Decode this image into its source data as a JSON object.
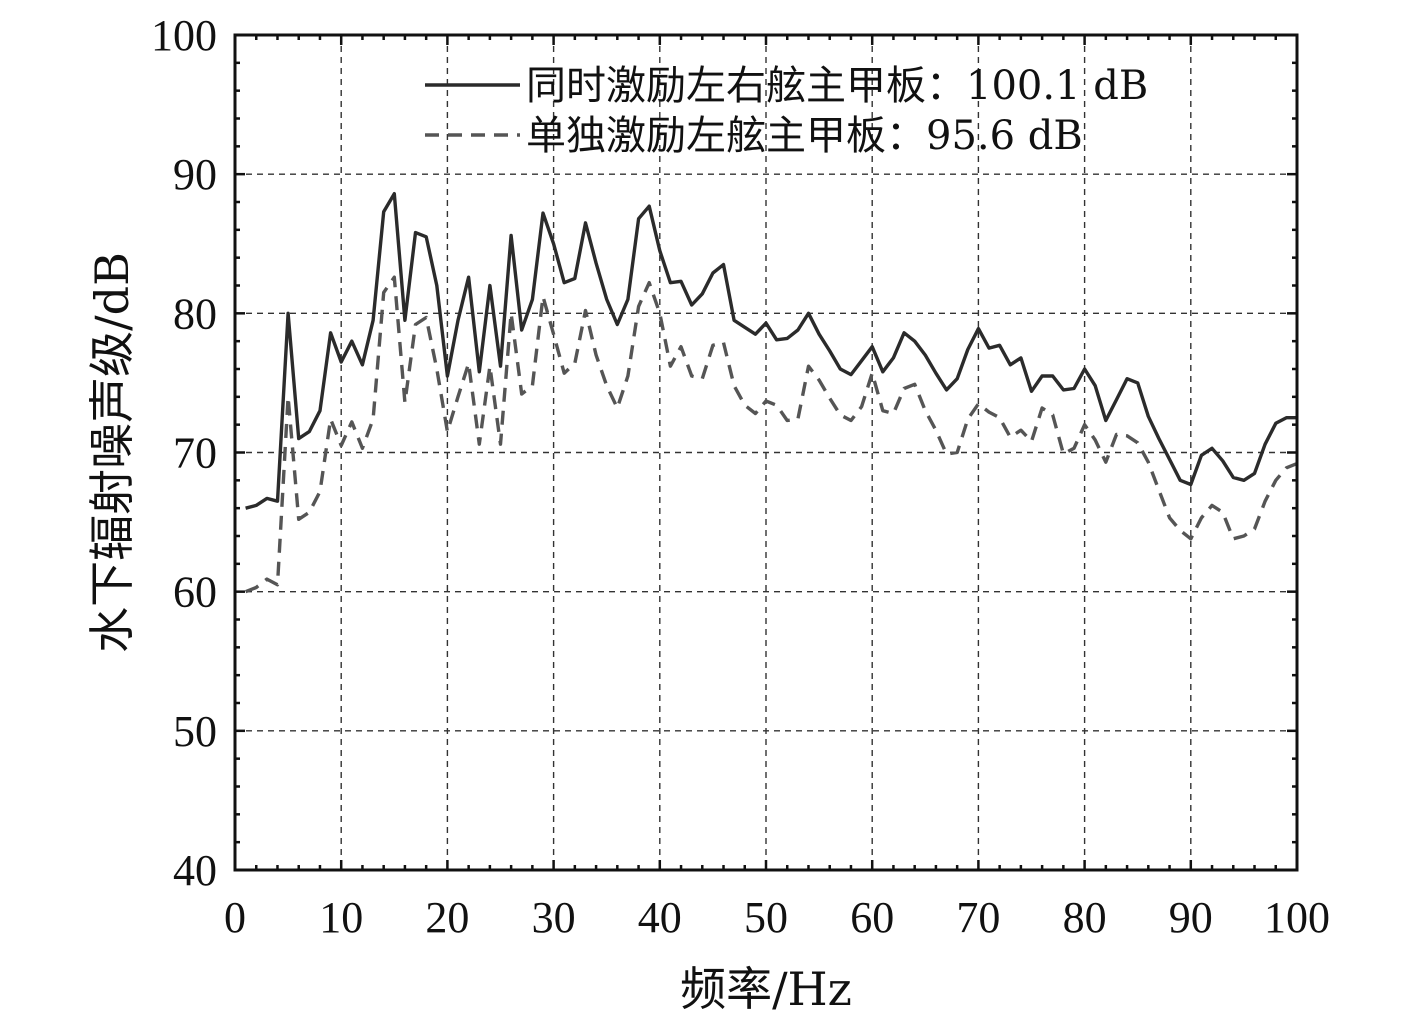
{
  "chart_data": {
    "type": "line",
    "title": "",
    "xlabel": "频率/Hz",
    "ylabel": "水下辐射噪声级/dB",
    "xlim": [
      0,
      100
    ],
    "ylim": [
      40,
      100
    ],
    "xticks": [
      0,
      10,
      20,
      30,
      40,
      50,
      60,
      70,
      80,
      90,
      100
    ],
    "yticks": [
      40,
      50,
      60,
      70,
      80,
      90,
      100
    ],
    "grid": true,
    "legend_position": "top-right",
    "x": [
      1,
      2,
      3,
      4,
      5,
      6,
      7,
      8,
      9,
      10,
      11,
      12,
      13,
      14,
      15,
      16,
      17,
      18,
      19,
      20,
      21,
      22,
      23,
      24,
      25,
      26,
      27,
      28,
      29,
      30,
      31,
      32,
      33,
      34,
      35,
      36,
      37,
      38,
      39,
      40,
      41,
      42,
      43,
      44,
      45,
      46,
      47,
      48,
      49,
      50,
      51,
      52,
      53,
      54,
      55,
      56,
      57,
      58,
      59,
      60,
      61,
      62,
      63,
      64,
      65,
      66,
      67,
      68,
      69,
      70,
      71,
      72,
      73,
      74,
      75,
      76,
      77,
      78,
      79,
      80,
      81,
      82,
      83,
      84,
      85,
      86,
      87,
      88,
      89,
      90,
      91,
      92,
      93,
      94,
      95,
      96,
      97,
      98,
      99,
      100
    ],
    "series": [
      {
        "name": "同时激励左右舷主甲板：100.1 dB",
        "style": "solid",
        "color": "#2b2b2b",
        "values": [
          66.0,
          66.2,
          66.7,
          66.5,
          80.0,
          71.0,
          71.5,
          73.0,
          78.6,
          76.5,
          78.0,
          76.3,
          79.5,
          87.3,
          88.6,
          79.5,
          85.8,
          85.5,
          82.0,
          75.5,
          79.5,
          82.6,
          75.8,
          82.0,
          76.2,
          85.6,
          78.8,
          81.0,
          87.2,
          85.0,
          82.2,
          82.5,
          86.5,
          83.6,
          81.0,
          79.2,
          81.0,
          86.8,
          87.7,
          84.5,
          82.2,
          82.3,
          80.6,
          81.4,
          82.9,
          83.5,
          79.5,
          79.0,
          78.5,
          79.3,
          78.1,
          78.2,
          78.8,
          80.0,
          78.5,
          77.3,
          76.0,
          75.6,
          76.6,
          77.6,
          75.8,
          76.8,
          78.6,
          78.0,
          77.0,
          75.7,
          74.5,
          75.3,
          77.4,
          78.9,
          77.5,
          77.7,
          76.3,
          76.8,
          74.4,
          75.5,
          75.5,
          74.5,
          74.6,
          76.0,
          74.8,
          72.3,
          73.8,
          75.3,
          75.0,
          72.6,
          71.0,
          69.5,
          68.0,
          67.7,
          69.8,
          70.3,
          69.4,
          68.2,
          68.0,
          68.5,
          70.6,
          72.1,
          72.5,
          72.5
        ]
      },
      {
        "name": "单独激励左舷主甲板：95.6 dB",
        "style": "dashed",
        "color": "#555555",
        "values": [
          60.0,
          60.3,
          60.9,
          60.5,
          74.0,
          65.2,
          65.7,
          67.2,
          72.4,
          70.5,
          72.2,
          70.3,
          72.4,
          81.5,
          82.6,
          73.6,
          79.2,
          79.7,
          76.0,
          71.5,
          74.0,
          76.4,
          70.6,
          76.2,
          70.6,
          80.0,
          74.2,
          74.8,
          81.2,
          78.5,
          75.7,
          76.4,
          80.2,
          77.0,
          74.8,
          73.2,
          75.5,
          80.5,
          82.2,
          80.0,
          76.2,
          77.6,
          75.5,
          75.3,
          77.7,
          77.9,
          74.8,
          73.4,
          72.8,
          73.7,
          73.4,
          72.3,
          72.4,
          76.2,
          75.2,
          73.9,
          72.7,
          72.3,
          73.3,
          75.7,
          73.0,
          72.8,
          74.6,
          74.9,
          73.0,
          71.6,
          69.9,
          70.0,
          72.4,
          73.5,
          72.9,
          72.5,
          71.1,
          71.6,
          70.8,
          73.2,
          72.7,
          69.9,
          70.3,
          72.0,
          70.9,
          69.3,
          71.3,
          71.2,
          70.7,
          69.3,
          67.3,
          65.3,
          64.4,
          63.8,
          65.3,
          66.2,
          65.7,
          63.8,
          64.0,
          64.5,
          66.5,
          68.0,
          68.9,
          69.2
        ]
      }
    ]
  }
}
